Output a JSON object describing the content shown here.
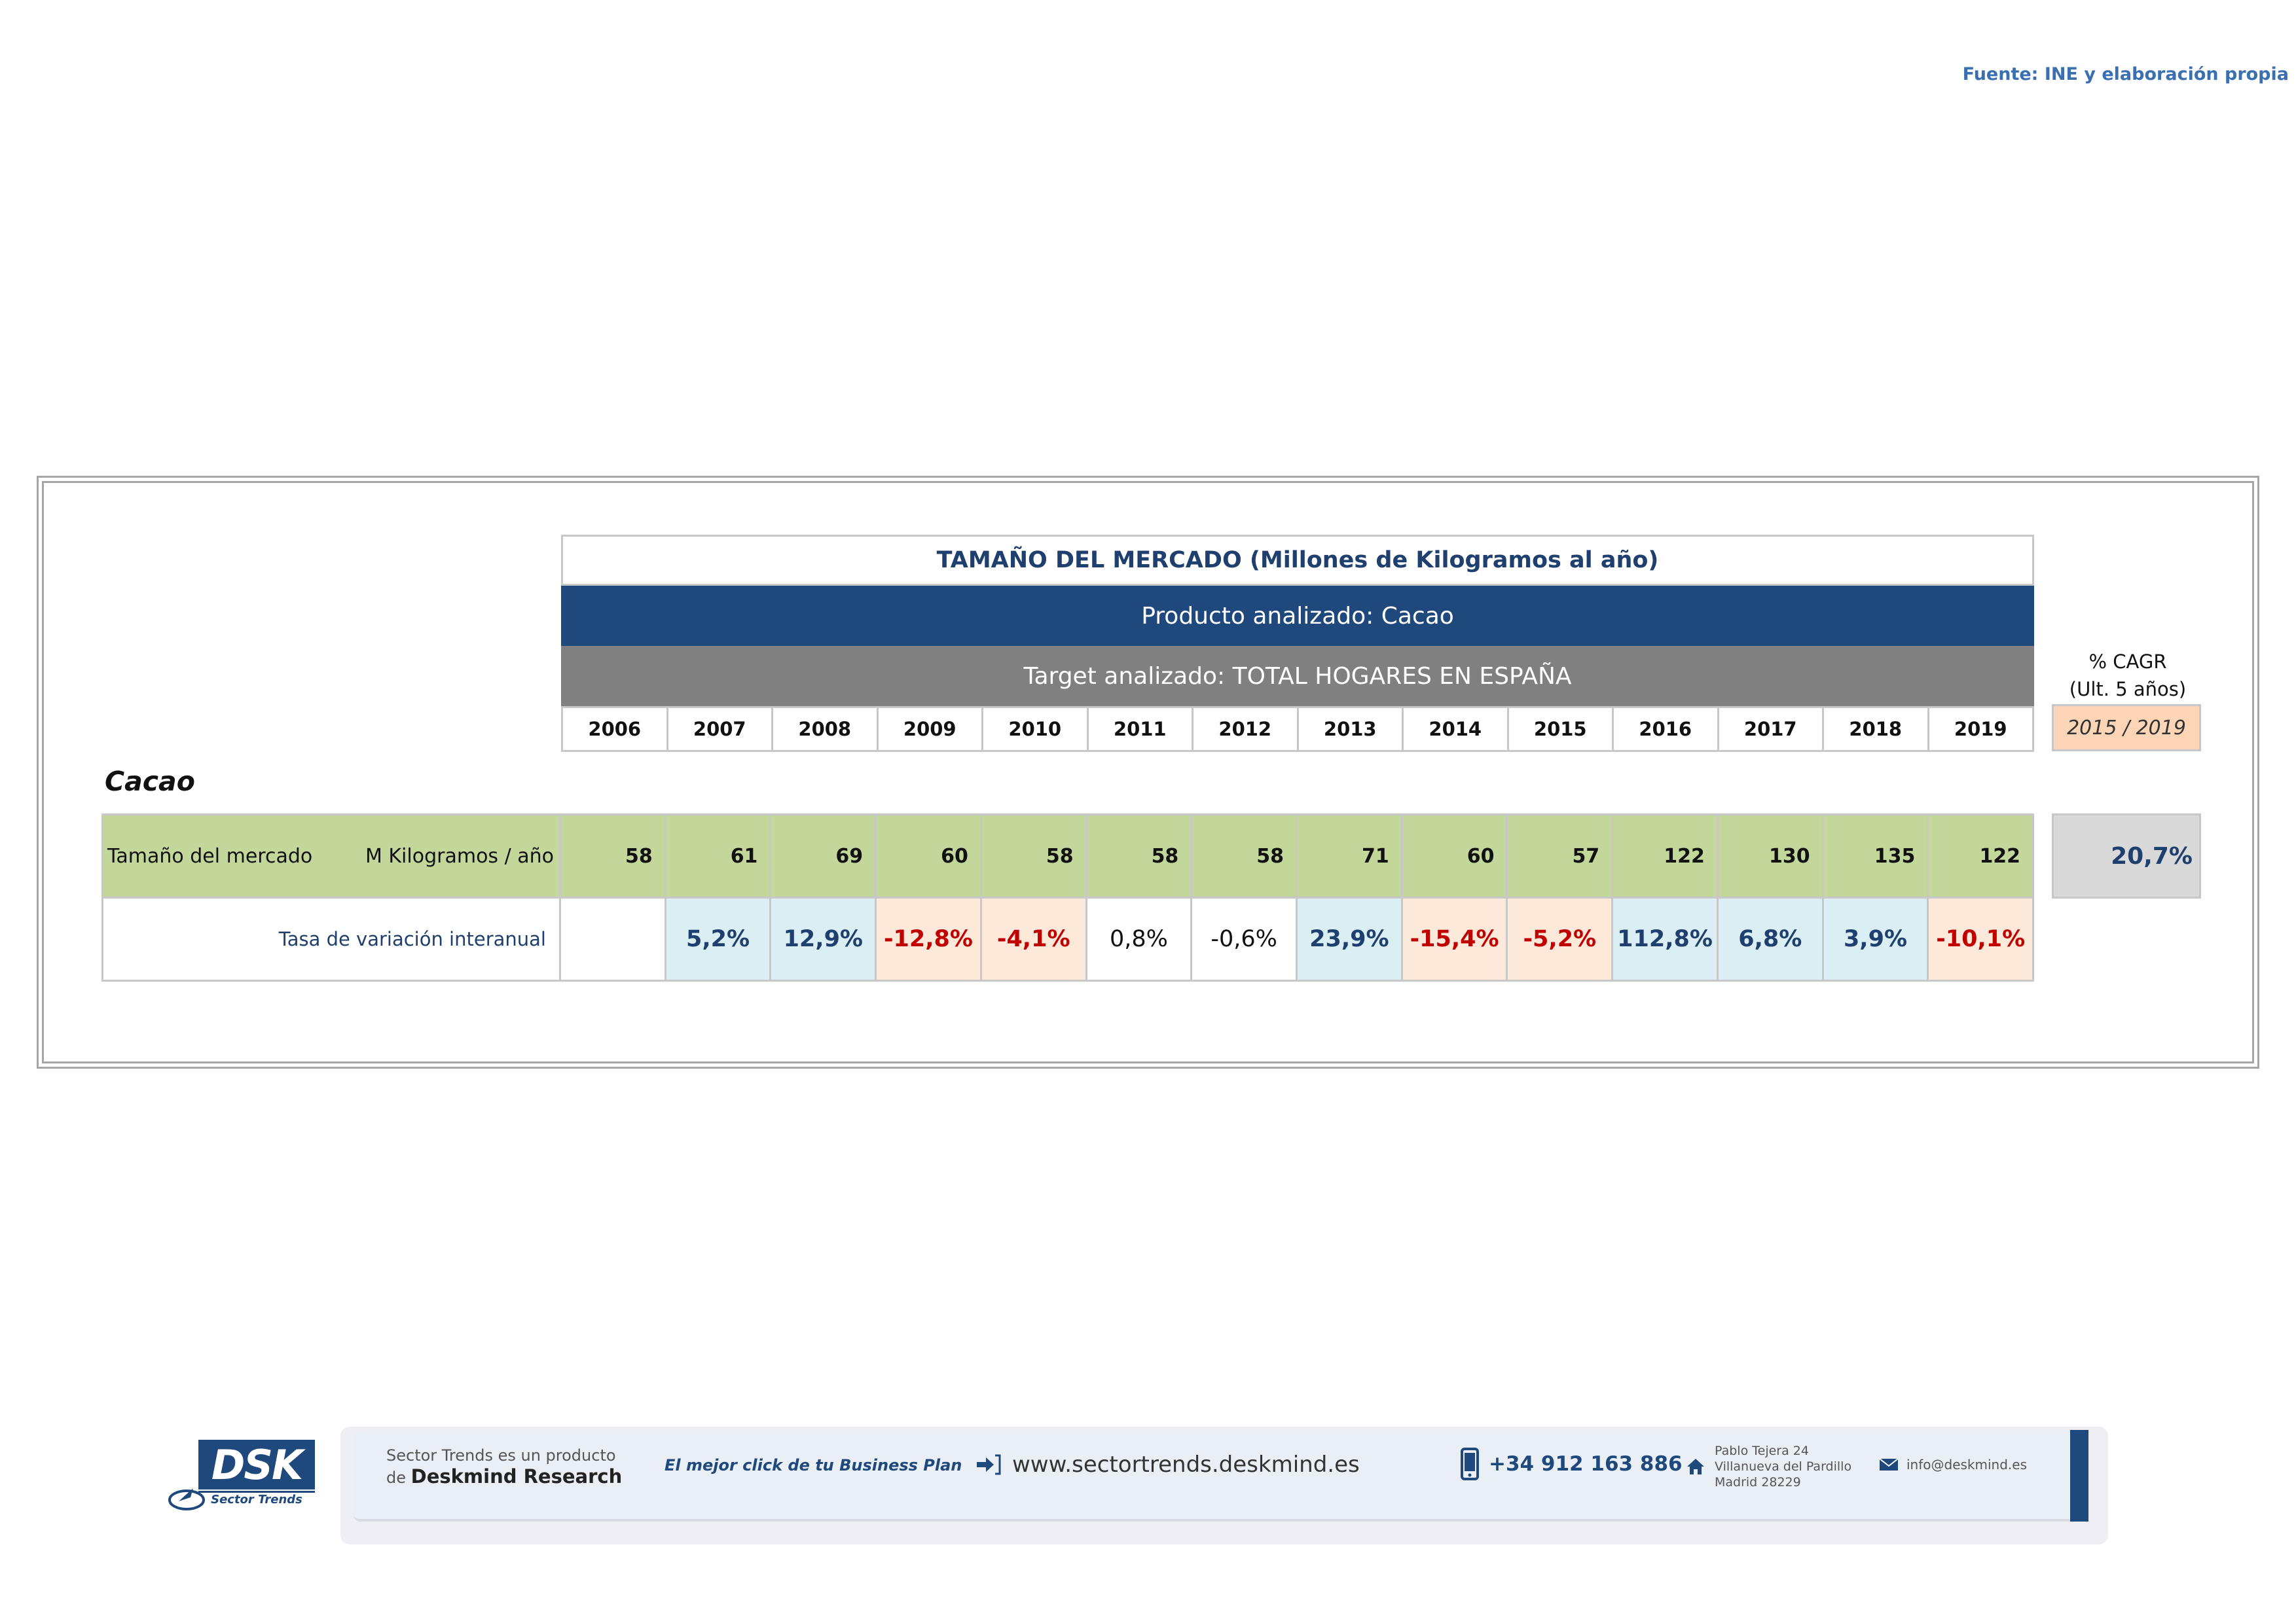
{
  "source": "Fuente: INE y elaboración propia",
  "table": {
    "title": "TAMAÑO DEL MERCADO (Millones de Kilogramos al año)",
    "product": "Producto analizado: Cacao",
    "target": "Target analizado: TOTAL HOGARES EN ESPAÑA",
    "years": [
      "2006",
      "2007",
      "2008",
      "2009",
      "2010",
      "2011",
      "2012",
      "2013",
      "2014",
      "2015",
      "2016",
      "2017",
      "2018",
      "2019"
    ],
    "cagr_label_line1": "% CAGR",
    "cagr_label_line2": "(Ult. 5 años)",
    "cagr_period": "2015 / 2019",
    "section": "Cacao",
    "market_row": {
      "label": "Tamaño del mercado",
      "unit": "M Kilogramos / año",
      "values": [
        "58",
        "61",
        "69",
        "60",
        "58",
        "58",
        "58",
        "71",
        "60",
        "57",
        "122",
        "130",
        "135",
        "122"
      ]
    },
    "rate_row": {
      "label": "Tasa de variación interanual",
      "values": [
        "",
        "5,2%",
        "12,9%",
        "-12,8%",
        "-4,1%",
        "0,8%",
        "-0,6%",
        "23,9%",
        "-15,4%",
        "-5,2%",
        "112,8%",
        "6,8%",
        "3,9%",
        "-10,1%"
      ],
      "styles": [
        "neu",
        "pos",
        "pos",
        "neg",
        "neg",
        "neu",
        "neu",
        "pos",
        "neg",
        "neg",
        "pos",
        "pos",
        "pos",
        "neg"
      ]
    },
    "cagr_value": "20,7%"
  },
  "footer": {
    "logo_text": "DSK",
    "logo_sub": "Sector Trends",
    "intro_line1": "Sector Trends es un producto",
    "intro_prefix": "de",
    "intro_brand": "Deskmind Research",
    "tagline": "El mejor click de tu Business Plan",
    "website": "www.sectortrends.deskmind.es",
    "phone": "+34 912 163 886",
    "address_line1": "Pablo Tejera 24",
    "address_line2": "Villanueva del Pardillo",
    "address_line3": "Madrid 28229",
    "email": "info@deskmind.es",
    "icons": [
      "link-arrow-icon",
      "phone-icon",
      "home-icon",
      "mail-icon"
    ],
    "colors": {
      "brand": "#1f497d",
      "positive_bg": "#daeef3",
      "negative_bg": "#fde9d9",
      "negative_text": "#c00000",
      "market_bg": "#c4d79b"
    }
  }
}
